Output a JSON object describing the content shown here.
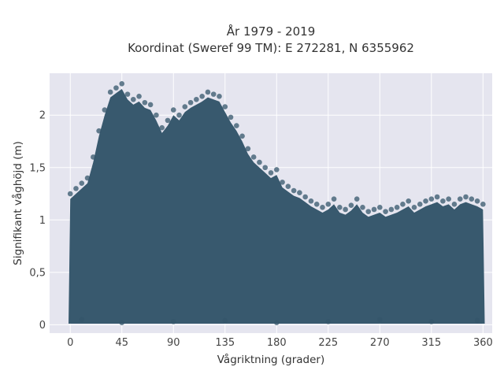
{
  "chart_data": {
    "type": "scatter",
    "title_line1": "År 1979 - 2019",
    "title_line2": "Koordinat (Sweref 99 TM): E 272281, N 6355962",
    "xlabel": "Vågriktning (grader)",
    "ylabel": "Signifikant våghöjd (m)",
    "xlim": [
      -18,
      368
    ],
    "ylim": [
      -0.08,
      2.4
    ],
    "x_ticks": [
      0,
      45,
      90,
      135,
      180,
      225,
      270,
      315,
      360
    ],
    "x_tick_labels": [
      "0",
      "45",
      "90",
      "135",
      "180",
      "225",
      "270",
      "315",
      "360"
    ],
    "y_ticks": [
      0,
      0.5,
      1,
      1.5,
      2
    ],
    "y_tick_labels": [
      "0",
      "0,5",
      "1",
      "1,5",
      "2"
    ],
    "grid": true,
    "point_color": "#34566b",
    "plot_background": "#e5e5ef",
    "series": [
      {
        "values": [
          {
            "x": 0,
            "y": 1.25
          },
          {
            "x": 5,
            "y": 1.3
          },
          {
            "x": 10,
            "y": 1.35
          },
          {
            "x": 15,
            "y": 1.4
          },
          {
            "x": 20,
            "y": 1.6
          },
          {
            "x": 25,
            "y": 1.85
          },
          {
            "x": 30,
            "y": 2.05
          },
          {
            "x": 35,
            "y": 2.22
          },
          {
            "x": 40,
            "y": 2.26
          },
          {
            "x": 45,
            "y": 2.3
          },
          {
            "x": 50,
            "y": 2.2
          },
          {
            "x": 55,
            "y": 2.15
          },
          {
            "x": 60,
            "y": 2.18
          },
          {
            "x": 65,
            "y": 2.12
          },
          {
            "x": 70,
            "y": 2.1
          },
          {
            "x": 75,
            "y": 2.0
          },
          {
            "x": 80,
            "y": 1.88
          },
          {
            "x": 85,
            "y": 1.95
          },
          {
            "x": 90,
            "y": 2.05
          },
          {
            "x": 95,
            "y": 2.0
          },
          {
            "x": 100,
            "y": 2.08
          },
          {
            "x": 105,
            "y": 2.12
          },
          {
            "x": 110,
            "y": 2.15
          },
          {
            "x": 115,
            "y": 2.18
          },
          {
            "x": 120,
            "y": 2.22
          },
          {
            "x": 125,
            "y": 2.2
          },
          {
            "x": 130,
            "y": 2.18
          },
          {
            "x": 135,
            "y": 2.08
          },
          {
            "x": 140,
            "y": 1.98
          },
          {
            "x": 145,
            "y": 1.9
          },
          {
            "x": 150,
            "y": 1.8
          },
          {
            "x": 155,
            "y": 1.68
          },
          {
            "x": 160,
            "y": 1.6
          },
          {
            "x": 165,
            "y": 1.55
          },
          {
            "x": 170,
            "y": 1.5
          },
          {
            "x": 175,
            "y": 1.45
          },
          {
            "x": 180,
            "y": 1.48
          },
          {
            "x": 185,
            "y": 1.36
          },
          {
            "x": 190,
            "y": 1.32
          },
          {
            "x": 195,
            "y": 1.28
          },
          {
            "x": 200,
            "y": 1.26
          },
          {
            "x": 205,
            "y": 1.22
          },
          {
            "x": 210,
            "y": 1.18
          },
          {
            "x": 215,
            "y": 1.15
          },
          {
            "x": 220,
            "y": 1.12
          },
          {
            "x": 225,
            "y": 1.15
          },
          {
            "x": 230,
            "y": 1.2
          },
          {
            "x": 235,
            "y": 1.12
          },
          {
            "x": 240,
            "y": 1.1
          },
          {
            "x": 245,
            "y": 1.14
          },
          {
            "x": 250,
            "y": 1.2
          },
          {
            "x": 255,
            "y": 1.12
          },
          {
            "x": 260,
            "y": 1.08
          },
          {
            "x": 265,
            "y": 1.1
          },
          {
            "x": 270,
            "y": 1.12
          },
          {
            "x": 275,
            "y": 1.08
          },
          {
            "x": 280,
            "y": 1.1
          },
          {
            "x": 285,
            "y": 1.12
          },
          {
            "x": 290,
            "y": 1.15
          },
          {
            "x": 295,
            "y": 1.18
          },
          {
            "x": 300,
            "y": 1.12
          },
          {
            "x": 305,
            "y": 1.15
          },
          {
            "x": 310,
            "y": 1.18
          },
          {
            "x": 315,
            "y": 1.2
          },
          {
            "x": 320,
            "y": 1.22
          },
          {
            "x": 325,
            "y": 1.18
          },
          {
            "x": 330,
            "y": 1.2
          },
          {
            "x": 335,
            "y": 1.15
          },
          {
            "x": 340,
            "y": 1.2
          },
          {
            "x": 345,
            "y": 1.22
          },
          {
            "x": 350,
            "y": 1.2
          },
          {
            "x": 355,
            "y": 1.18
          },
          {
            "x": 360,
            "y": 1.15
          },
          {
            "x": 10,
            "y": 0.05
          },
          {
            "x": 45,
            "y": 0.02
          },
          {
            "x": 90,
            "y": 0.03
          },
          {
            "x": 135,
            "y": 0.04
          },
          {
            "x": 180,
            "y": 0.02
          },
          {
            "x": 225,
            "y": 0.03
          },
          {
            "x": 270,
            "y": 0.05
          },
          {
            "x": 315,
            "y": 0.03
          },
          {
            "x": 355,
            "y": 0.04
          }
        ]
      }
    ]
  }
}
